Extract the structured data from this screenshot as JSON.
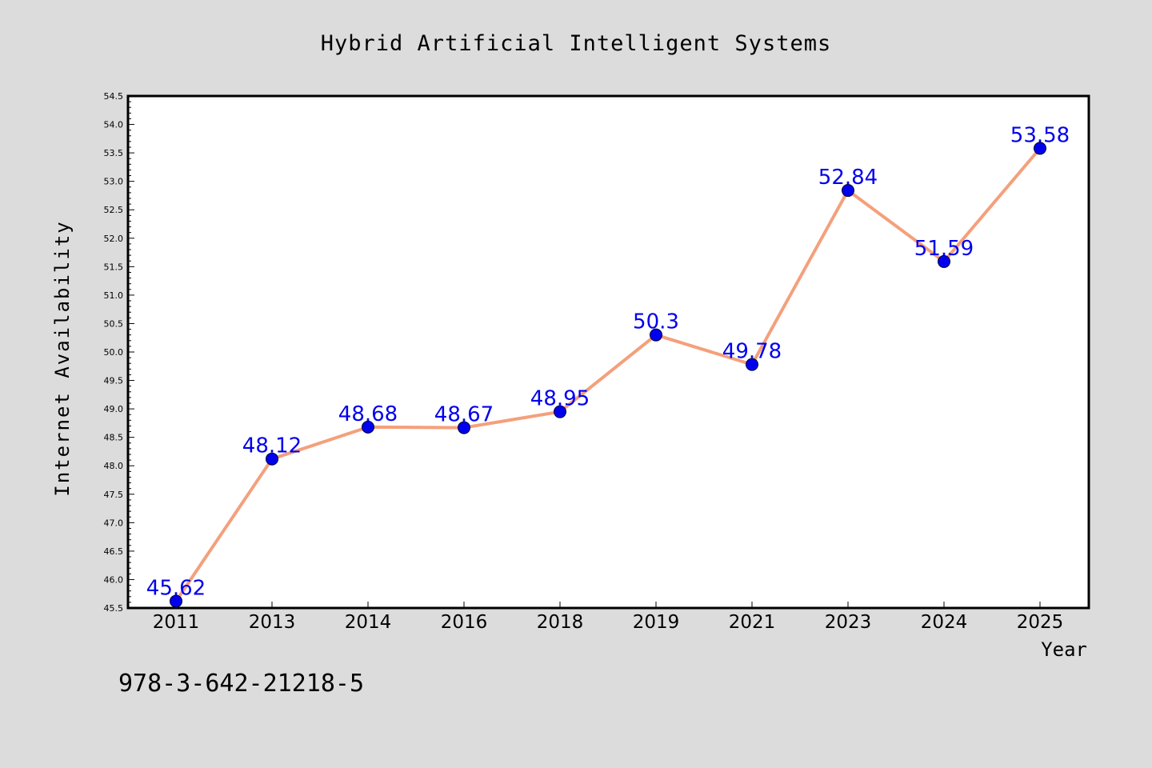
{
  "chart_data": {
    "type": "line",
    "title": "Hybrid Artificial Intelligent Systems",
    "xlabel": "Year",
    "ylabel": "Internet Availability",
    "categories": [
      "2011",
      "2013",
      "2014",
      "2016",
      "2018",
      "2019",
      "2021",
      "2023",
      "2024",
      "2025"
    ],
    "series": [
      {
        "values": [
          45.62,
          48.12,
          48.68,
          48.67,
          48.95,
          50.3,
          49.78,
          52.84,
          51.59,
          53.58
        ],
        "labels": [
          "45.62",
          "48.12",
          "48.68",
          "48.67",
          "48.95",
          "50.3",
          "49.78",
          "52.84",
          "51.59",
          "53.58"
        ],
        "line_color": "#f4a07c",
        "marker_color": "#0000ee"
      }
    ],
    "ylim": [
      45.5,
      54.5
    ],
    "yticks": [
      "45.5",
      "46.0",
      "46.5",
      "47.0",
      "47.5",
      "48.0",
      "48.5",
      "49.0",
      "49.5",
      "50.0",
      "50.5",
      "51.0",
      "51.5",
      "52.0",
      "52.5",
      "53.0",
      "53.5",
      "54.0",
      "54.5"
    ],
    "grid": false,
    "legend": "none",
    "data_label_color": "#0000ee"
  },
  "footer_text": "978-3-642-21218-5",
  "colors": {
    "background": "#dcdcdc",
    "plot_area": "#ffffff",
    "axis": "#000000"
  }
}
